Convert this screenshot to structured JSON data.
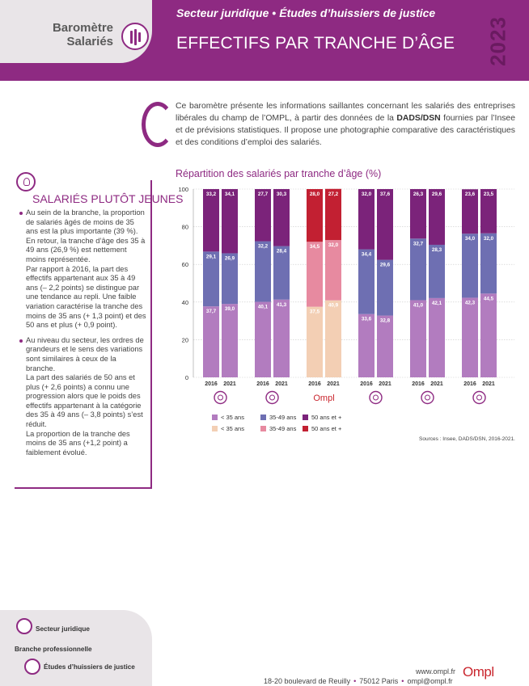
{
  "header": {
    "brand_title": "Baromètre Salariés",
    "sector": "Secteur juridique",
    "subsector": "Études d’huissiers de justice",
    "title": "EFFECTIFS PAR TRANCHE D’ÂGE",
    "year": "2023",
    "colors": {
      "header": "#8e2a82",
      "brand_box": "#e9e5e8",
      "year": "#6a1a60"
    }
  },
  "intro": {
    "text_before": "Ce baromètre présente les informations saillantes concernant les salariés des entreprises libérales du champ de l’OMPL, à partir des données de la ",
    "text_bold": "DADS/DSN",
    "text_after": " fournies par l’Insee et de prévisions statistiques. Il propose une photographie comparative des caractéristiques et des conditions d’emploi des salariés."
  },
  "sidebar": {
    "icon": "lightbulb-icon",
    "title": "SALARIÉS PLUTÔT JEUNES",
    "paragraphs": [
      {
        "bullet": true,
        "text": "Au sein de la branche, la proportion de salariés âgés de moins de 35 ans est la plus importante (39 %). En retour, la tranche d’âge des 35 à 49 ans (26,9 %) est nettement moins représentée."
      },
      {
        "bullet": false,
        "text": "Par rapport à 2016, la part des effectifs appartenant aux 35 à 49 ans (– 2,2 points) se distingue par une tendance au repli. Une faible variation caractérise la tranche des moins de 35 ans (+ 1,3 point) et des 50 ans et plus (+ 0,9 point)."
      },
      {
        "bullet": true,
        "text": "Au niveau du secteur, les ordres de grandeurs et le sens des variations sont similaires à ceux de la branche."
      },
      {
        "bullet": false,
        "text": "La part des salariés de 50 ans et plus (+ 2,6 points) a connu une progression alors que le poids des effectifs appartenant à la catégorie des 35 à 49 ans (– 3,8 points) s’est réduit."
      },
      {
        "bullet": false,
        "text": "La proportion de la tranche des moins de 35 ans (+1,2 point) a faiblement évolué."
      }
    ]
  },
  "chart_data": {
    "type": "bar",
    "stacked": true,
    "title": "Répartition des salariés par tranche d’âge (%)",
    "ylim": [
      0,
      100
    ],
    "yticks": [
      0,
      20,
      40,
      60,
      80,
      100
    ],
    "grid": true,
    "groups": [
      {
        "icon": "scales-hand-icon",
        "categories": [
          "2016",
          "2021"
        ],
        "lt35": [
          37.7,
          39.0
        ],
        "mid": [
          29.1,
          26.9
        ],
        "ge50": [
          33.2,
          34.1
        ],
        "lt35_labels": [
          "37,7",
          "39,0"
        ],
        "mid_labels": [
          "29,1",
          "26,9"
        ],
        "ge50_labels": [
          "33,2",
          "34,1"
        ],
        "palette": "purple"
      },
      {
        "icon": "scales-icon",
        "categories": [
          "2016",
          "2021"
        ],
        "lt35": [
          40.1,
          41.3
        ],
        "mid": [
          32.2,
          28.4
        ],
        "ge50": [
          27.7,
          30.3
        ],
        "lt35_labels": [
          "40,1",
          "41,3"
        ],
        "mid_labels": [
          "32,2",
          "28,4"
        ],
        "ge50_labels": [
          "27,7",
          "30,3"
        ],
        "palette": "purple"
      },
      {
        "icon": "ompl-logo-icon",
        "categories": [
          "2016",
          "2021"
        ],
        "lt35": [
          37.5,
          40.9
        ],
        "mid": [
          34.5,
          32.0
        ],
        "ge50": [
          28.0,
          27.2
        ],
        "lt35_labels": [
          "37,5",
          "40,9"
        ],
        "mid_labels": [
          "34,5",
          "32,0"
        ],
        "ge50_labels": [
          "28,0",
          "27,2"
        ],
        "palette": "red"
      },
      {
        "icon": "institution-icon",
        "categories": [
          "2016",
          "2021"
        ],
        "lt35": [
          33.6,
          32.8
        ],
        "mid": [
          34.4,
          29.6
        ],
        "ge50": [
          32.0,
          37.6
        ],
        "lt35_labels": [
          "33,6",
          "32,8"
        ],
        "mid_labels": [
          "34,4",
          "29,6"
        ],
        "ge50_labels": [
          "32,0",
          "37,6"
        ],
        "palette": "purple"
      },
      {
        "icon": "family-icon",
        "categories": [
          "2016",
          "2021"
        ],
        "lt35": [
          41.0,
          42.1
        ],
        "mid": [
          32.7,
          28.3
        ],
        "ge50": [
          26.3,
          29.6
        ],
        "lt35_labels": [
          "41,0",
          "42,1"
        ],
        "mid_labels": [
          "32,7",
          "28,3"
        ],
        "ge50_labels": [
          "26,3",
          "29,6"
        ],
        "palette": "purple"
      },
      {
        "icon": "person-chart-icon",
        "categories": [
          "2016",
          "2021"
        ],
        "lt35": [
          42.3,
          44.5
        ],
        "mid": [
          34.0,
          32.0
        ],
        "ge50": [
          23.6,
          23.5
        ],
        "lt35_labels": [
          "42,3",
          "44,5"
        ],
        "mid_labels": [
          "34,0",
          "32,0"
        ],
        "ge50_labels": [
          "23,6",
          "23,5"
        ],
        "palette": "purple"
      }
    ],
    "palettes": {
      "purple": {
        "lt35": "#b27cbf",
        "mid": "#6e6fb2",
        "ge50": "#7b237a"
      },
      "red": {
        "lt35": "#f3cfb4",
        "mid": "#e78aa0",
        "ge50": "#c22032"
      }
    },
    "legend": [
      {
        "label": "< 35 ans",
        "color": "#b27cbf"
      },
      {
        "label": "35-49 ans",
        "color": "#6e6fb2"
      },
      {
        "label": "50 ans et +",
        "color": "#7b237a"
      },
      {
        "label": "< 35 ans",
        "color": "#f3cfb4"
      },
      {
        "label": "35-49 ans",
        "color": "#e78aa0"
      },
      {
        "label": "50 ans et +",
        "color": "#c22032"
      }
    ],
    "ompl_label": "Ompl",
    "source": "Sources : Insee, DADS/DSN, 2016-2021."
  },
  "footer": {
    "sector_label": "Secteur juridique",
    "branch_label": "Branche professionnelle",
    "subsector_label": "Études d’huissiers de justice",
    "website": "www.ompl.fr",
    "address": "18-20 boulevard de Reuilly",
    "city": "75012 Paris",
    "email": "ompl@ompl.fr",
    "logo": "Ompl"
  }
}
